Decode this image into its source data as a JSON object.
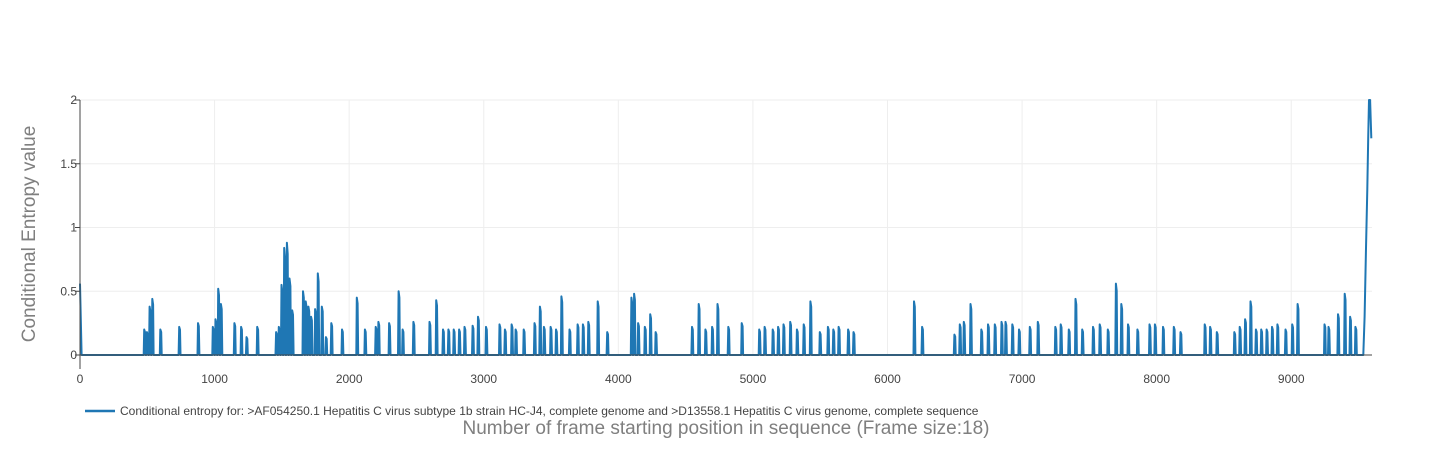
{
  "chart_data": {
    "type": "line",
    "xlabel": "Number of frame starting position in sequence (Frame size:18)",
    "ylabel": "Conditional Entropy value",
    "xlim": [
      0,
      9600
    ],
    "ylim": [
      0,
      2
    ],
    "x_ticks": [
      0,
      1000,
      2000,
      3000,
      4000,
      5000,
      6000,
      7000,
      8000,
      9000
    ],
    "x_tick_labels": [
      "0",
      "1000",
      "2000",
      "3000",
      "4000",
      "5000",
      "6000",
      "7000",
      "8000",
      "9000"
    ],
    "y_ticks": [
      0,
      0.5,
      1,
      1.5,
      2
    ],
    "y_tick_labels": [
      "0",
      "0.5",
      "1",
      "1.5",
      "2"
    ],
    "grid": true,
    "legend_position": "bottom-left",
    "colors": {
      "series": "#1f77b4",
      "grid": "#eeeeee",
      "axis": "#444444"
    },
    "series": [
      {
        "name": "Conditional entropy for: >AF054250.1 Hepatitis C virus subtype 1b strain HC-J4, complete genome and >D13558.1 Hepatitis C virus genome, complete sequence",
        "peaks": [
          [
            0,
            0.56
          ],
          [
            480,
            0.2
          ],
          [
            500,
            0.18
          ],
          [
            520,
            0.38
          ],
          [
            540,
            0.44
          ],
          [
            600,
            0.2
          ],
          [
            740,
            0.22
          ],
          [
            880,
            0.25
          ],
          [
            990,
            0.22
          ],
          [
            1010,
            0.28
          ],
          [
            1030,
            0.52
          ],
          [
            1050,
            0.4
          ],
          [
            1150,
            0.25
          ],
          [
            1200,
            0.22
          ],
          [
            1240,
            0.14
          ],
          [
            1320,
            0.22
          ],
          [
            1460,
            0.18
          ],
          [
            1480,
            0.22
          ],
          [
            1500,
            0.55
          ],
          [
            1520,
            0.84
          ],
          [
            1540,
            0.88
          ],
          [
            1560,
            0.6
          ],
          [
            1580,
            0.35
          ],
          [
            1660,
            0.5
          ],
          [
            1680,
            0.42
          ],
          [
            1700,
            0.38
          ],
          [
            1720,
            0.3
          ],
          [
            1750,
            0.36
          ],
          [
            1770,
            0.64
          ],
          [
            1800,
            0.38
          ],
          [
            1830,
            0.14
          ],
          [
            1870,
            0.25
          ],
          [
            1950,
            0.2
          ],
          [
            2060,
            0.45
          ],
          [
            2120,
            0.2
          ],
          [
            2200,
            0.22
          ],
          [
            2220,
            0.26
          ],
          [
            2300,
            0.25
          ],
          [
            2370,
            0.5
          ],
          [
            2400,
            0.2
          ],
          [
            2480,
            0.26
          ],
          [
            2600,
            0.26
          ],
          [
            2650,
            0.43
          ],
          [
            2700,
            0.2
          ],
          [
            2740,
            0.2
          ],
          [
            2780,
            0.2
          ],
          [
            2820,
            0.2
          ],
          [
            2860,
            0.22
          ],
          [
            2920,
            0.23
          ],
          [
            2960,
            0.3
          ],
          [
            3020,
            0.22
          ],
          [
            3120,
            0.24
          ],
          [
            3160,
            0.2
          ],
          [
            3210,
            0.24
          ],
          [
            3240,
            0.2
          ],
          [
            3300,
            0.2
          ],
          [
            3380,
            0.25
          ],
          [
            3420,
            0.38
          ],
          [
            3450,
            0.22
          ],
          [
            3500,
            0.22
          ],
          [
            3540,
            0.2
          ],
          [
            3580,
            0.46
          ],
          [
            3640,
            0.2
          ],
          [
            3700,
            0.24
          ],
          [
            3740,
            0.24
          ],
          [
            3780,
            0.26
          ],
          [
            3850,
            0.42
          ],
          [
            3920,
            0.18
          ],
          [
            4100,
            0.45
          ],
          [
            4120,
            0.48
          ],
          [
            4150,
            0.25
          ],
          [
            4200,
            0.22
          ],
          [
            4240,
            0.32
          ],
          [
            4280,
            0.18
          ],
          [
            4550,
            0.22
          ],
          [
            4600,
            0.4
          ],
          [
            4650,
            0.2
          ],
          [
            4700,
            0.22
          ],
          [
            4740,
            0.4
          ],
          [
            4820,
            0.22
          ],
          [
            4920,
            0.25
          ],
          [
            5050,
            0.2
          ],
          [
            5090,
            0.22
          ],
          [
            5150,
            0.2
          ],
          [
            5190,
            0.22
          ],
          [
            5230,
            0.24
          ],
          [
            5280,
            0.26
          ],
          [
            5330,
            0.2
          ],
          [
            5380,
            0.24
          ],
          [
            5430,
            0.42
          ],
          [
            5500,
            0.18
          ],
          [
            5560,
            0.22
          ],
          [
            5600,
            0.2
          ],
          [
            5640,
            0.22
          ],
          [
            5710,
            0.2
          ],
          [
            5750,
            0.18
          ],
          [
            6200,
            0.42
          ],
          [
            6260,
            0.22
          ],
          [
            6500,
            0.16
          ],
          [
            6540,
            0.24
          ],
          [
            6570,
            0.26
          ],
          [
            6620,
            0.4
          ],
          [
            6700,
            0.2
          ],
          [
            6750,
            0.24
          ],
          [
            6800,
            0.24
          ],
          [
            6850,
            0.26
          ],
          [
            6880,
            0.26
          ],
          [
            6930,
            0.24
          ],
          [
            6980,
            0.2
          ],
          [
            7060,
            0.22
          ],
          [
            7120,
            0.26
          ],
          [
            7250,
            0.22
          ],
          [
            7290,
            0.24
          ],
          [
            7350,
            0.2
          ],
          [
            7400,
            0.44
          ],
          [
            7450,
            0.2
          ],
          [
            7530,
            0.22
          ],
          [
            7580,
            0.24
          ],
          [
            7640,
            0.2
          ],
          [
            7700,
            0.56
          ],
          [
            7740,
            0.4
          ],
          [
            7790,
            0.24
          ],
          [
            7860,
            0.2
          ],
          [
            7950,
            0.24
          ],
          [
            7990,
            0.24
          ],
          [
            8050,
            0.22
          ],
          [
            8130,
            0.22
          ],
          [
            8180,
            0.18
          ],
          [
            8360,
            0.24
          ],
          [
            8400,
            0.22
          ],
          [
            8450,
            0.18
          ],
          [
            8580,
            0.18
          ],
          [
            8620,
            0.22
          ],
          [
            8660,
            0.28
          ],
          [
            8700,
            0.42
          ],
          [
            8740,
            0.2
          ],
          [
            8780,
            0.2
          ],
          [
            8820,
            0.2
          ],
          [
            8860,
            0.22
          ],
          [
            8900,
            0.24
          ],
          [
            8960,
            0.2
          ],
          [
            9010,
            0.24
          ],
          [
            9050,
            0.4
          ],
          [
            9250,
            0.24
          ],
          [
            9280,
            0.22
          ],
          [
            9350,
            0.32
          ],
          [
            9400,
            0.48
          ],
          [
            9440,
            0.3
          ],
          [
            9480,
            0.22
          ]
        ],
        "tail": [
          [
            9545,
            0.3
          ],
          [
            9555,
            0.8
          ],
          [
            9565,
            1.3
          ],
          [
            9572,
            1.7
          ],
          [
            9578,
            2.0
          ],
          [
            9586,
            2.0
          ],
          [
            9595,
            1.7
          ]
        ]
      }
    ]
  }
}
